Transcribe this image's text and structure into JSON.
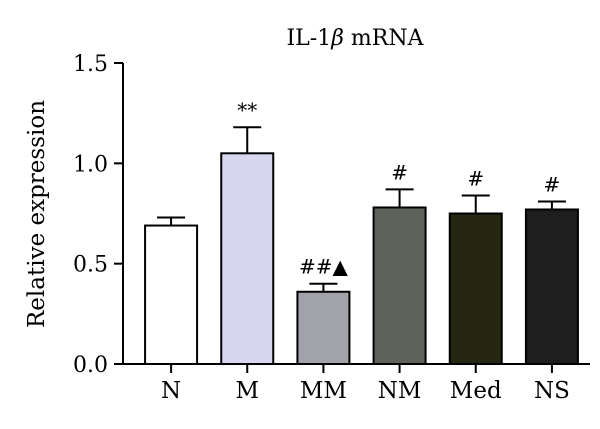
{
  "chart_data": {
    "type": "bar",
    "title": {
      "prefix": "IL-1",
      "symbol": "β",
      "suffix": " mRNA"
    },
    "xlabel": "",
    "ylabel": "Relative expression",
    "ylim": [
      0,
      1.5
    ],
    "yticks": [
      "0.0",
      "0.5",
      "1.0",
      "1.5"
    ],
    "ytick_values": [
      0,
      0.5,
      1.0,
      1.5
    ],
    "grid": false,
    "categories": [
      "N",
      "M",
      "MM",
      "NM",
      "Med",
      "NS"
    ],
    "values": [
      0.69,
      1.05,
      0.36,
      0.78,
      0.75,
      0.77
    ],
    "errors": [
      0.04,
      0.13,
      0.04,
      0.09,
      0.09,
      0.04
    ],
    "annotations": [
      "",
      "**",
      "##▲",
      "#",
      "#",
      "#"
    ],
    "colors": [
      "#ffffff",
      "#d7d8ef",
      "#a2a2aa",
      "#5f615b",
      "#262710",
      "#1e1e1e"
    ]
  }
}
